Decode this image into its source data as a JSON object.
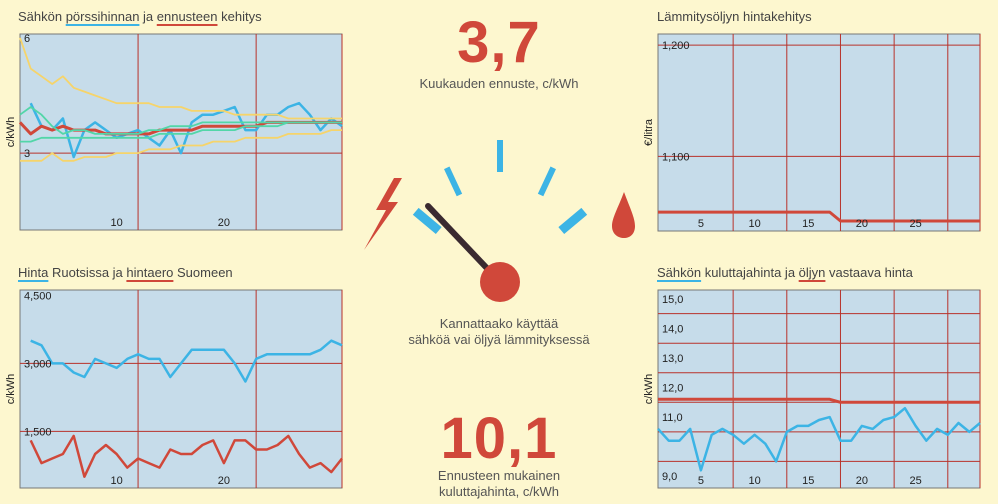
{
  "panels": {
    "p1": {
      "title_parts": [
        {
          "text": "Sähkön ",
          "u": ""
        },
        {
          "text": "pörssihinnan",
          "u": "blue"
        },
        {
          "text": " ja ",
          "u": ""
        },
        {
          "text": "ennusteen",
          "u": "red"
        },
        {
          "text": " kehitys",
          "u": ""
        }
      ]
    },
    "p2": {
      "title_parts": [
        {
          "text": "Lämmitysöljyn hintakehitys",
          "u": ""
        }
      ]
    },
    "p3": {
      "title_parts": [
        {
          "text": "Hinta",
          "u": "blue"
        },
        {
          "text": " Ruotsissa ja ",
          "u": ""
        },
        {
          "text": "hintaero",
          "u": "red"
        },
        {
          "text": " Suomeen",
          "u": ""
        }
      ]
    },
    "p4": {
      "title_parts": [
        {
          "text": "Sähkön",
          "u": "blue"
        },
        {
          "text": " kuluttajahinta ja ",
          "u": ""
        },
        {
          "text": "öljyn",
          "u": "red"
        },
        {
          "text": " vastaava hinta",
          "u": ""
        }
      ]
    }
  },
  "center": {
    "forecast_value": "3,7",
    "forecast_caption": "Kuukauden ennuste, c/kWh",
    "question_line1": "Kannattaako käyttää",
    "question_line2": "sähköä vai öljyä lämmityksessä",
    "consumer_value": "10,1",
    "consumer_caption_line1": "Ennusteen mukainen",
    "consumer_caption_line2": "kuluttajahinta, c/kWh",
    "gauge_needle_fraction": 0.3
  },
  "colors": {
    "blue": "#3cb4e5",
    "red": "#d0483a",
    "teal": "#52d6a8",
    "yellow": "#f6d46a",
    "panel_bg": "#c6dcea",
    "grid": "#b8322a",
    "needle": "#3a2a30"
  },
  "icons": {
    "electricity": "lightning-icon",
    "oil": "oil-drop-icon"
  },
  "chart_data": [
    {
      "id": "p1",
      "type": "line",
      "ylabel": "c/kWh",
      "x_ticks": [
        10,
        20
      ],
      "y_ticks": [
        {
          "value": 3,
          "label": "3"
        },
        {
          "value": 6,
          "label": "6"
        }
      ],
      "xlim": [
        1,
        31
      ],
      "ylim": [
        1,
        6.1
      ],
      "grid_x": [
        12,
        23,
        31
      ],
      "grid_y": [
        3
      ],
      "series": [
        {
          "color": "blue",
          "width": 2.5,
          "x": [
            2,
            3,
            4,
            5,
            6,
            7,
            8,
            9,
            10,
            11,
            12,
            13,
            14,
            15,
            16,
            17,
            18,
            19,
            20,
            21,
            22,
            23,
            24,
            25,
            26,
            27,
            28,
            29,
            30,
            31
          ],
          "y": [
            4.3,
            3.7,
            3.6,
            3.9,
            2.9,
            3.6,
            3.8,
            3.6,
            3.4,
            3.5,
            3.6,
            3.4,
            3.2,
            3.6,
            3.0,
            3.8,
            4.0,
            4.0,
            4.1,
            4.2,
            3.6,
            3.6,
            4.0,
            4.0,
            4.2,
            4.3,
            4.0,
            3.6,
            3.9,
            3.7
          ],
          "y_fix": [
            4.3,
            3.7,
            3.6,
            3.9,
            2.9,
            3.6,
            3.8,
            3.6,
            3.4,
            3.5,
            3.6,
            3.4,
            3.2,
            3.6,
            3.0,
            3.8,
            4.0,
            4.0,
            4.1,
            4.2,
            3.6,
            3.6,
            4.0,
            4.0,
            4.2,
            4.3,
            4.0,
            3.6,
            3.9,
            3.7
          ]
        },
        {
          "color": "red",
          "width": 3,
          "x": [
            1,
            2,
            3,
            4,
            5,
            6,
            7,
            8,
            9,
            10,
            11,
            12,
            13,
            14,
            15,
            16,
            17,
            18,
            19,
            20,
            21,
            22,
            23,
            24,
            25,
            26,
            27,
            28,
            29,
            30,
            31
          ],
          "y": [
            3.8,
            3.5,
            3.7,
            3.6,
            3.7,
            3.6,
            3.6,
            3.6,
            3.5,
            3.5,
            3.5,
            3.5,
            3.5,
            3.6,
            3.6,
            3.6,
            3.6,
            3.7,
            3.7,
            3.7,
            3.7,
            3.7,
            3.7,
            3.8,
            3.8,
            3.8,
            3.8,
            3.8,
            3.8,
            3.8,
            3.8
          ]
        },
        {
          "color": "teal",
          "width": 1.8,
          "x": [
            1,
            2,
            3,
            4,
            5,
            6,
            7,
            8,
            9,
            10,
            11,
            12,
            13,
            14,
            15,
            16,
            17,
            18,
            19,
            20,
            21,
            22,
            23,
            24,
            25,
            26,
            27,
            28,
            29,
            30,
            31
          ],
          "y": [
            4.0,
            4.2,
            4.0,
            3.7,
            3.5,
            3.6,
            3.6,
            3.5,
            3.5,
            3.5,
            3.5,
            3.5,
            3.6,
            3.6,
            3.7,
            3.7,
            3.7,
            3.8,
            3.8,
            3.8,
            3.8,
            3.8,
            3.8,
            3.8,
            3.8,
            3.8,
            3.8,
            3.8,
            3.8,
            3.8,
            3.8
          ]
        },
        {
          "color": "teal",
          "width": 1.8,
          "x": [
            1,
            2,
            3,
            4,
            5,
            6,
            7,
            8,
            9,
            10,
            11,
            12,
            13,
            14,
            15,
            16,
            17,
            18,
            19,
            20,
            21,
            22,
            23,
            24,
            25,
            26,
            27,
            28,
            29,
            30,
            31
          ],
          "y": [
            3.3,
            3.3,
            3.4,
            3.4,
            3.4,
            3.4,
            3.4,
            3.4,
            3.4,
            3.4,
            3.4,
            3.4,
            3.4,
            3.5,
            3.5,
            3.5,
            3.5,
            3.6,
            3.6,
            3.6,
            3.6,
            3.7,
            3.7,
            3.7,
            3.7,
            3.8,
            3.8,
            3.8,
            3.8,
            3.8,
            3.8
          ]
        },
        {
          "color": "yellow",
          "width": 1.8,
          "x": [
            1,
            2,
            3,
            4,
            5,
            6,
            7,
            8,
            9,
            10,
            11,
            12,
            13,
            14,
            15,
            16,
            17,
            18,
            19,
            20,
            21,
            22,
            23,
            24,
            25,
            26,
            27,
            28,
            29,
            30,
            31
          ],
          "y": [
            6.0,
            5.2,
            5.0,
            4.8,
            5.0,
            4.7,
            4.6,
            4.5,
            4.4,
            4.3,
            4.3,
            4.3,
            4.3,
            4.2,
            4.2,
            4.2,
            4.1,
            4.1,
            4.1,
            4.1,
            4.0,
            4.0,
            4.0,
            4.0,
            4.0,
            3.9,
            3.9,
            3.9,
            3.9,
            3.9,
            3.9
          ]
        },
        {
          "color": "yellow",
          "width": 1.8,
          "x": [
            1,
            2,
            3,
            4,
            5,
            6,
            7,
            8,
            9,
            10,
            11,
            12,
            13,
            14,
            15,
            16,
            17,
            18,
            19,
            20,
            21,
            22,
            23,
            24,
            25,
            26,
            27,
            28,
            29,
            30,
            31
          ],
          "y": [
            2.8,
            2.8,
            2.8,
            3.0,
            2.8,
            2.8,
            2.9,
            2.9,
            2.9,
            3.0,
            3.0,
            3.0,
            3.1,
            3.1,
            3.1,
            3.2,
            3.2,
            3.2,
            3.3,
            3.3,
            3.3,
            3.4,
            3.4,
            3.4,
            3.4,
            3.5,
            3.5,
            3.5,
            3.5,
            3.6,
            3.6
          ]
        }
      ]
    },
    {
      "id": "p2",
      "type": "line",
      "ylabel": "€/litra",
      "x_ticks": [
        5,
        10,
        15,
        20,
        25
      ],
      "y_ticks": [
        {
          "value": 1.2,
          "label": "1,200"
        },
        {
          "value": 1.1,
          "label": "1,100"
        }
      ],
      "xlim": [
        1,
        31
      ],
      "ylim": [
        1.033,
        1.21
      ],
      "grid_x": [
        8,
        13,
        18,
        23,
        28,
        31
      ],
      "grid_y": [
        1.2,
        1.1
      ],
      "series": [
        {
          "color": "red",
          "width": 3,
          "x": [
            1,
            2,
            3,
            4,
            5,
            6,
            7,
            8,
            9,
            10,
            11,
            12,
            13,
            14,
            15,
            16,
            17,
            18,
            19,
            20,
            21,
            22,
            23,
            24,
            25,
            26,
            27,
            28,
            29,
            30,
            31
          ],
          "y": [
            1.05,
            1.05,
            1.05,
            1.05,
            1.05,
            1.05,
            1.05,
            1.05,
            1.05,
            1.05,
            1.05,
            1.05,
            1.05,
            1.05,
            1.05,
            1.05,
            1.05,
            1.042,
            1.042,
            1.042,
            1.042,
            1.042,
            1.042,
            1.042,
            1.042,
            1.042,
            1.042,
            1.042,
            1.042,
            1.042,
            1.042
          ]
        }
      ]
    },
    {
      "id": "p3",
      "type": "line",
      "ylabel": "c/kWh",
      "x_ticks": [
        10,
        20
      ],
      "y_ticks": [
        {
          "value": 4.5,
          "label": "4,500"
        },
        {
          "value": 3.0,
          "label": "3,000"
        },
        {
          "value": 1.5,
          "label": "1,500"
        }
      ],
      "xlim": [
        1,
        31
      ],
      "ylim": [
        0.25,
        4.62
      ],
      "grid_x": [
        12,
        23,
        31
      ],
      "grid_y": [
        3.0,
        1.5
      ],
      "series": [
        {
          "color": "blue",
          "width": 2.5,
          "x": [
            2,
            3,
            4,
            5,
            6,
            7,
            8,
            9,
            10,
            11,
            12,
            13,
            14,
            15,
            16,
            17,
            18,
            19,
            20,
            21,
            22,
            23,
            24,
            25,
            26,
            27,
            28,
            29,
            30,
            31
          ],
          "y": [
            3.5,
            3.4,
            3.0,
            3.0,
            2.8,
            2.7,
            3.1,
            3.0,
            2.9,
            3.1,
            3.2,
            3.1,
            3.1,
            2.7,
            3.0,
            3.3,
            3.3,
            3.3,
            3.3,
            3.0,
            2.6,
            3.1,
            3.2,
            3.2,
            3.2,
            3.2,
            3.2,
            3.3,
            3.5,
            3.4
          ],
          "y_fix": [
            3.5,
            3.4,
            3.0,
            3.0,
            2.8,
            2.7,
            3.1,
            3.0,
            2.9,
            3.1,
            3.2,
            3.1,
            3.1,
            2.7,
            3.0,
            3.3,
            3.3,
            3.3,
            3.3,
            3.0,
            2.6,
            3.1,
            3.2,
            3.2,
            3.2,
            3.2,
            3.2,
            3.3,
            3.5,
            3.4
          ]
        },
        {
          "color": "red",
          "width": 2.5,
          "x": [
            2,
            3,
            4,
            5,
            6,
            7,
            8,
            9,
            10,
            11,
            12,
            13,
            14,
            15,
            16,
            17,
            18,
            19,
            20,
            21,
            22,
            23,
            24,
            25,
            26,
            27,
            28,
            29,
            30,
            31
          ],
          "y": [
            1.3,
            0.8,
            0.9,
            1.0,
            1.4,
            0.5,
            1.0,
            1.2,
            1.0,
            0.7,
            0.9,
            0.8,
            0.7,
            1.1,
            1.0,
            1.0,
            1.2,
            1.3,
            0.8,
            1.3,
            1.3,
            1.1,
            1.1,
            1.2,
            1.4,
            1.0,
            0.7,
            0.8,
            0.6,
            0.9
          ],
          "y_fix": [
            1.3,
            0.8,
            0.9,
            1.0,
            1.4,
            0.5,
            1.0,
            1.2,
            1.0,
            0.7,
            0.9,
            0.8,
            0.7,
            1.1,
            1.0,
            1.0,
            1.2,
            1.3,
            0.8,
            1.3,
            1.3,
            1.1,
            1.1,
            1.2,
            1.4,
            1.0,
            0.7,
            0.8,
            0.6,
            0.9
          ]
        }
      ]
    },
    {
      "id": "p4",
      "type": "line",
      "ylabel": "c/kWh",
      "x_ticks": [
        5,
        10,
        15,
        20,
        25
      ],
      "y_ticks": [
        {
          "value": 15,
          "label": "15,0"
        },
        {
          "value": 14,
          "label": "14,0"
        },
        {
          "value": 13,
          "label": "13,0"
        },
        {
          "value": 12,
          "label": "12,0"
        },
        {
          "value": 11,
          "label": "11,0"
        },
        {
          "value": 9,
          "label": "9,0"
        }
      ],
      "xlim": [
        1,
        31
      ],
      "ylim": [
        8.6,
        15.3
      ],
      "grid_x": [
        8,
        13,
        18,
        23,
        28,
        31
      ],
      "grid_y": [
        14.5,
        13.5,
        12.5,
        11.5,
        10.5,
        9.5
      ],
      "series": [
        {
          "color": "red",
          "width": 3,
          "x": [
            1,
            2,
            3,
            4,
            5,
            6,
            7,
            8,
            9,
            10,
            11,
            12,
            13,
            14,
            15,
            16,
            17,
            18,
            19,
            20,
            21,
            22,
            23,
            24,
            25,
            26,
            27,
            28,
            29,
            30,
            31
          ],
          "y": [
            11.6,
            11.6,
            11.6,
            11.6,
            11.6,
            11.6,
            11.6,
            11.6,
            11.6,
            11.6,
            11.6,
            11.6,
            11.6,
            11.6,
            11.6,
            11.6,
            11.6,
            11.5,
            11.5,
            11.5,
            11.5,
            11.5,
            11.5,
            11.5,
            11.5,
            11.5,
            11.5,
            11.5,
            11.5,
            11.5,
            11.5
          ]
        },
        {
          "color": "blue",
          "width": 2.5,
          "x": [
            1,
            2,
            3,
            4,
            5,
            6,
            7,
            8,
            9,
            10,
            11,
            12,
            13,
            14,
            15,
            16,
            17,
            18,
            19,
            20,
            21,
            22,
            23,
            24,
            25,
            26,
            27,
            28,
            29,
            30,
            31
          ],
          "y": [
            10.6,
            10.2,
            10.2,
            10.6,
            9.2,
            10.4,
            10.6,
            10.4,
            10.1,
            10.4,
            10.1,
            9.5,
            10.5,
            10.7,
            10.7,
            10.9,
            11.0,
            10.2,
            10.2,
            10.7,
            10.6,
            10.9,
            11.0,
            11.3,
            10.7,
            10.2,
            10.6,
            10.4,
            10.8,
            10.5,
            10.8
          ]
        }
      ]
    }
  ]
}
